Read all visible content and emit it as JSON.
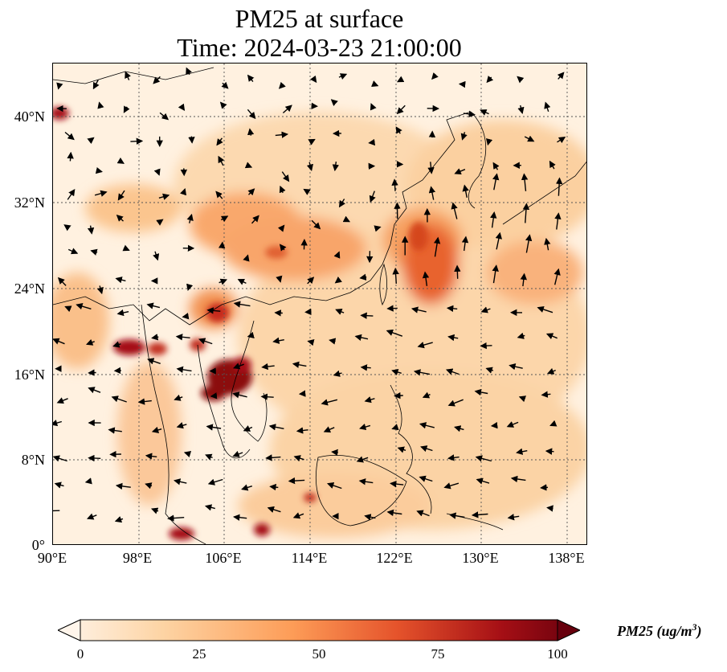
{
  "title": {
    "line1": "PM25 at surface",
    "line2": "Time: 2024-03-23 21:00:00"
  },
  "axes": {
    "lat_labels": [
      "40°N",
      "32°N",
      "24°N",
      "16°N",
      "8°N",
      "0°"
    ],
    "lon_labels": [
      "90°E",
      "98°E",
      "106°E",
      "114°E",
      "122°E",
      "130°E",
      "138°E"
    ]
  },
  "colorbar": {
    "ticks": [
      "0",
      "25",
      "50",
      "75",
      "100"
    ],
    "label": "PM25 (ug/m",
    "label_exp": "3",
    "label_end": ")",
    "colors": [
      "#fff5eb",
      "#fdd4a4",
      "#fd9c57",
      "#e5532b",
      "#a50f15",
      "#67000d"
    ]
  },
  "map_data": {
    "type": "heatmap",
    "variable": "PM25",
    "lon_range": [
      90,
      140
    ],
    "lat_range": [
      0,
      45
    ],
    "vmin": 0,
    "vmax": 100,
    "grid": true
  }
}
